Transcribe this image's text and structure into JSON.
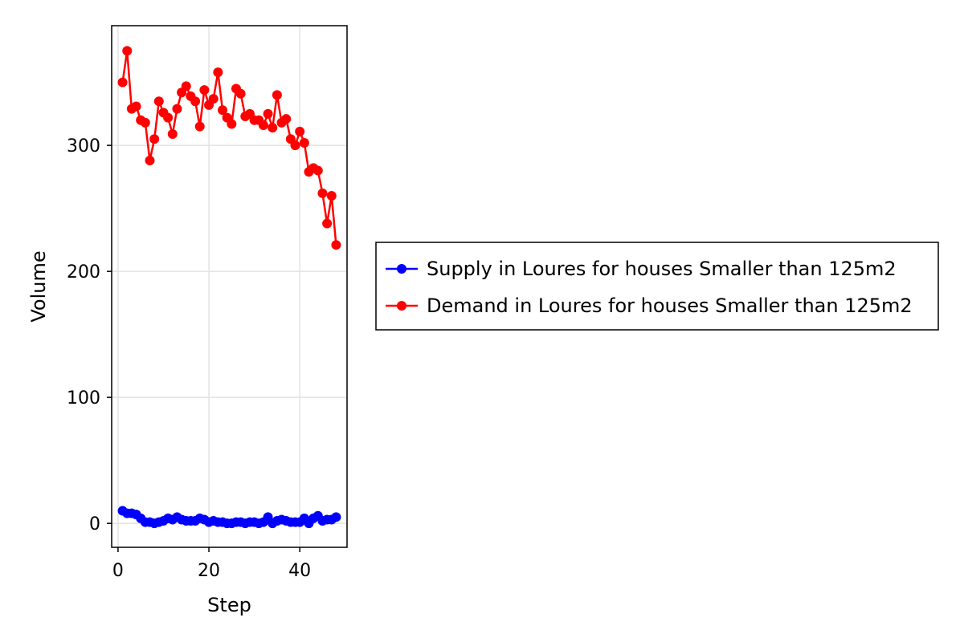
{
  "chart_data": {
    "type": "line",
    "title": "",
    "xlabel": "Step",
    "ylabel": "Volume",
    "xlim": [
      -1.4,
      50.4
    ],
    "ylim": [
      -19,
      395
    ],
    "xticks": [
      0,
      20,
      40
    ],
    "yticks": [
      0,
      100,
      200,
      300
    ],
    "grid": true,
    "legend_position": "right",
    "series": [
      {
        "name": "Supply in Loures for houses Smaller than 125m2",
        "color": "#0000ff",
        "x": [
          1,
          2,
          3,
          4,
          5,
          6,
          7,
          8,
          9,
          10,
          11,
          12,
          13,
          14,
          15,
          16,
          17,
          18,
          19,
          20,
          21,
          22,
          23,
          24,
          25,
          26,
          27,
          28,
          29,
          30,
          31,
          32,
          33,
          34,
          35,
          36,
          37,
          38,
          39,
          40,
          41,
          42,
          43,
          44,
          45,
          46,
          47,
          48
        ],
        "y": [
          10,
          8,
          8,
          7,
          4,
          1,
          1,
          0,
          1,
          2,
          4,
          3,
          5,
          3,
          2,
          2,
          2,
          4,
          3,
          1,
          2,
          1,
          1,
          0,
          0,
          1,
          1,
          0,
          1,
          1,
          0,
          1,
          5,
          0,
          2,
          3,
          2,
          1,
          1,
          1,
          4,
          0,
          4,
          6,
          2,
          3,
          3,
          5
        ]
      },
      {
        "name": "Demand in Loures for houses Smaller than 125m2",
        "color": "#ff0000",
        "x": [
          1,
          2,
          3,
          4,
          5,
          6,
          7,
          8,
          9,
          10,
          11,
          12,
          13,
          14,
          15,
          16,
          17,
          18,
          19,
          20,
          21,
          22,
          23,
          24,
          25,
          26,
          27,
          28,
          29,
          30,
          31,
          32,
          33,
          34,
          35,
          36,
          37,
          38,
          39,
          40,
          41,
          42,
          43,
          44,
          45,
          46,
          47,
          48
        ],
        "y": [
          350,
          375,
          329,
          331,
          320,
          318,
          288,
          305,
          335,
          326,
          322,
          309,
          329,
          342,
          347,
          339,
          335,
          315,
          344,
          332,
          337,
          358,
          328,
          322,
          317,
          345,
          341,
          323,
          325,
          320,
          320,
          316,
          325,
          314,
          340,
          318,
          321,
          305,
          300,
          311,
          302,
          279,
          282,
          280,
          262,
          238,
          260,
          221
        ]
      }
    ]
  }
}
